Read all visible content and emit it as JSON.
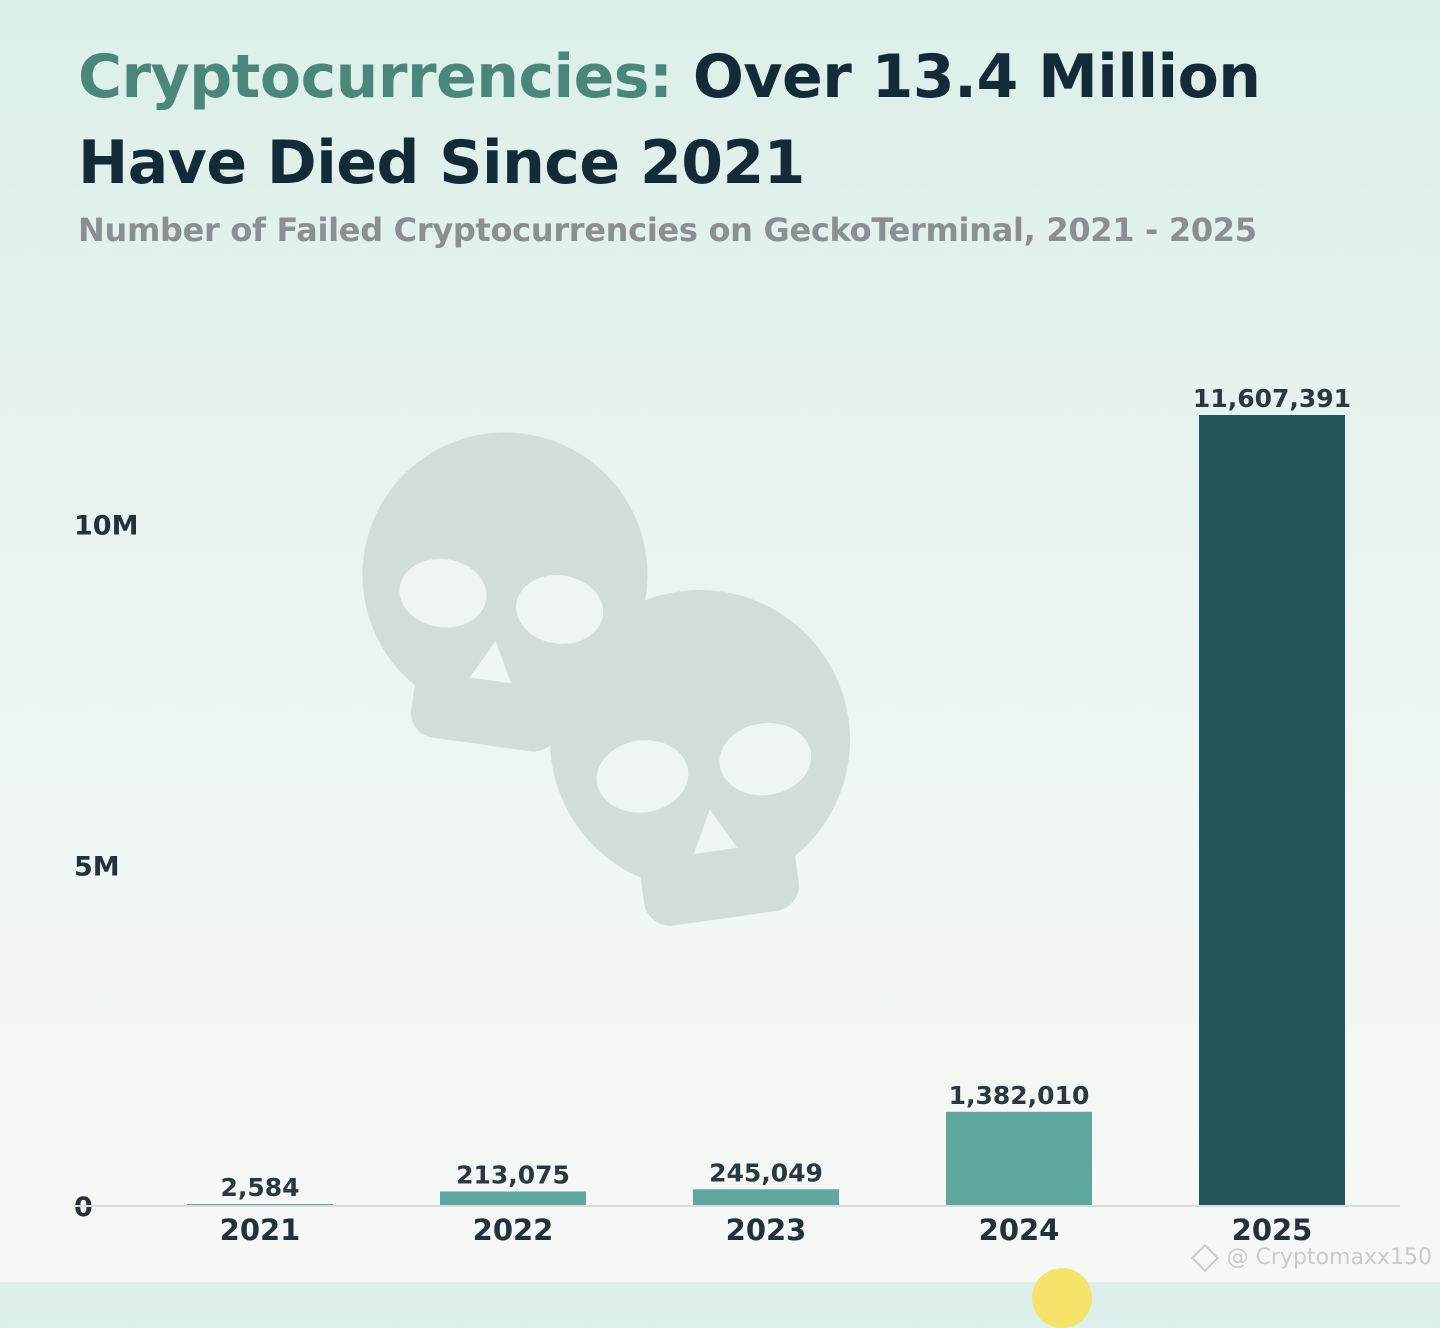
{
  "header": {
    "title_accent": "Cryptocurrencies:",
    "title_rest": " Over 13.4 Million Have Died Since 2021",
    "subtitle": "Number of Failed Cryptocurrencies on GeckoTerminal, 2021 - 2025"
  },
  "watermark": {
    "text": "@ Cryptomaxx150",
    "icon": "binance-logo-icon"
  },
  "decor": {
    "icon": "skull-icon",
    "count": 2
  },
  "colors": {
    "accent": "#4a8779",
    "title": "#132a38",
    "bar_light": "#5fa89e",
    "bar_dark": "#23555a",
    "skull": "#d2dcd8"
  },
  "chart_data": {
    "type": "bar",
    "categories": [
      "2021",
      "2022",
      "2023",
      "2024",
      "2025"
    ],
    "values": [
      2584,
      213075,
      245049,
      1382010,
      11607391
    ],
    "value_labels": [
      "2,584",
      "213,075",
      "245,049",
      "1,382,010",
      "11,607,391"
    ],
    "yticks": [
      0,
      5000000,
      10000000
    ],
    "ytick_labels": [
      "0",
      "5M",
      "10M"
    ],
    "ylim": [
      0,
      11607391
    ],
    "highlight_index": 4,
    "grid": false,
    "legend": "none"
  }
}
